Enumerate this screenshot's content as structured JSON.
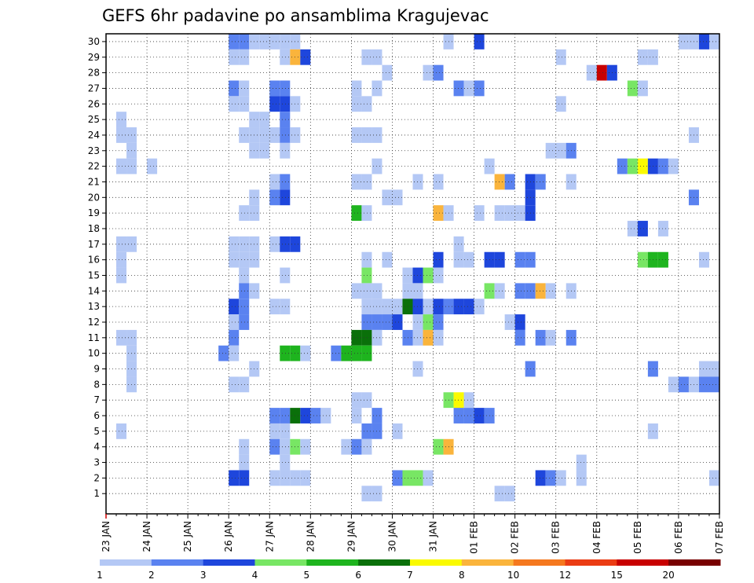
{
  "chart_data": {
    "type": "heatmap",
    "title": "GEFS 6hr padavine po ansamblima Kragujevac",
    "xlabel": "",
    "ylabel": "",
    "x_tick_labels": [
      "23 JAN",
      "24 JAN",
      "25 JAN",
      "26 JAN",
      "27 JAN",
      "28 JAN",
      "29 JAN",
      "30 JAN",
      "31 JAN",
      "01 FEB",
      "02 FEB",
      "03 FEB",
      "04 FEB",
      "05 FEB",
      "06 FEB",
      "07 FEB"
    ],
    "y_tick_labels": [
      "1",
      "2",
      "3",
      "4",
      "5",
      "6",
      "7",
      "8",
      "9",
      "10",
      "11",
      "12",
      "13",
      "14",
      "15",
      "16",
      "17",
      "18",
      "19",
      "20",
      "21",
      "22",
      "23",
      "24",
      "25",
      "26",
      "27",
      "28",
      "29",
      "30"
    ],
    "time_steps_per_day": 4,
    "x_range": [
      "23 JAN",
      "07 FEB"
    ],
    "y_range": [
      1,
      30
    ],
    "grid": true,
    "legend_position": "bottom",
    "legend": {
      "labels": [
        "1",
        "2",
        "3",
        "4",
        "5",
        "6",
        "7",
        "8",
        "10",
        "12",
        "15",
        "20"
      ],
      "colors": [
        "#b4c8f5",
        "#5a82f0",
        "#1e46dc",
        "#78e664",
        "#1eb41e",
        "#0a700a",
        "#fafa00",
        "#fab43c",
        "#f5781e",
        "#eb3c14",
        "#c80000",
        "#780000"
      ]
    },
    "series_encoding": "cells: [member, step, class]; step = index of 6-hour interval from 23 JAN 00 UTC; class = 0-based color bin index",
    "cells": [
      [
        30,
        12,
        1
      ],
      [
        30,
        13,
        1
      ],
      [
        30,
        14,
        0
      ],
      [
        30,
        15,
        0
      ],
      [
        30,
        16,
        0
      ],
      [
        30,
        17,
        0
      ],
      [
        30,
        18,
        0
      ],
      [
        30,
        33,
        0
      ],
      [
        30,
        36,
        2
      ],
      [
        30,
        56,
        0
      ],
      [
        30,
        57,
        0
      ],
      [
        30,
        58,
        2
      ],
      [
        30,
        59,
        0
      ],
      [
        29,
        12,
        0
      ],
      [
        29,
        13,
        0
      ],
      [
        29,
        17,
        0
      ],
      [
        29,
        18,
        7
      ],
      [
        29,
        19,
        2
      ],
      [
        29,
        25,
        0
      ],
      [
        29,
        26,
        0
      ],
      [
        29,
        44,
        0
      ],
      [
        29,
        52,
        0
      ],
      [
        29,
        53,
        0
      ],
      [
        28,
        27,
        0
      ],
      [
        28,
        31,
        0
      ],
      [
        28,
        32,
        1
      ],
      [
        28,
        47,
        0
      ],
      [
        28,
        48,
        10
      ],
      [
        28,
        49,
        2
      ],
      [
        27,
        12,
        1
      ],
      [
        27,
        13,
        0
      ],
      [
        27,
        16,
        1
      ],
      [
        27,
        17,
        1
      ],
      [
        27,
        24,
        0
      ],
      [
        27,
        26,
        0
      ],
      [
        27,
        34,
        1
      ],
      [
        27,
        35,
        0
      ],
      [
        27,
        36,
        1
      ],
      [
        27,
        51,
        3
      ],
      [
        27,
        52,
        0
      ],
      [
        26,
        12,
        0
      ],
      [
        26,
        13,
        0
      ],
      [
        26,
        16,
        2
      ],
      [
        26,
        17,
        2
      ],
      [
        26,
        18,
        0
      ],
      [
        26,
        24,
        0
      ],
      [
        26,
        25,
        0
      ],
      [
        26,
        44,
        0
      ],
      [
        25,
        1,
        0
      ],
      [
        25,
        14,
        0
      ],
      [
        25,
        15,
        0
      ],
      [
        25,
        17,
        1
      ],
      [
        24,
        1,
        0
      ],
      [
        24,
        2,
        0
      ],
      [
        24,
        13,
        0
      ],
      [
        24,
        14,
        0
      ],
      [
        24,
        15,
        0
      ],
      [
        24,
        16,
        0
      ],
      [
        24,
        17,
        1
      ],
      [
        24,
        18,
        0
      ],
      [
        24,
        24,
        0
      ],
      [
        24,
        25,
        0
      ],
      [
        24,
        26,
        0
      ],
      [
        24,
        57,
        0
      ],
      [
        23,
        2,
        0
      ],
      [
        23,
        14,
        0
      ],
      [
        23,
        15,
        0
      ],
      [
        23,
        17,
        0
      ],
      [
        23,
        43,
        0
      ],
      [
        23,
        44,
        0
      ],
      [
        23,
        45,
        1
      ],
      [
        22,
        1,
        0
      ],
      [
        22,
        2,
        0
      ],
      [
        22,
        4,
        0
      ],
      [
        22,
        26,
        0
      ],
      [
        22,
        37,
        0
      ],
      [
        22,
        50,
        1
      ],
      [
        22,
        51,
        3
      ],
      [
        22,
        52,
        6
      ],
      [
        22,
        53,
        2
      ],
      [
        22,
        54,
        1
      ],
      [
        22,
        55,
        0
      ],
      [
        21,
        16,
        0
      ],
      [
        21,
        17,
        1
      ],
      [
        21,
        24,
        0
      ],
      [
        21,
        25,
        0
      ],
      [
        21,
        30,
        0
      ],
      [
        21,
        32,
        0
      ],
      [
        21,
        38,
        7
      ],
      [
        21,
        39,
        1
      ],
      [
        21,
        41,
        2
      ],
      [
        21,
        42,
        1
      ],
      [
        21,
        45,
        0
      ],
      [
        20,
        14,
        0
      ],
      [
        20,
        16,
        1
      ],
      [
        20,
        17,
        2
      ],
      [
        20,
        27,
        0
      ],
      [
        20,
        28,
        0
      ],
      [
        20,
        41,
        2
      ],
      [
        20,
        57,
        1
      ],
      [
        19,
        13,
        0
      ],
      [
        19,
        14,
        0
      ],
      [
        19,
        24,
        4
      ],
      [
        19,
        25,
        0
      ],
      [
        19,
        32,
        7
      ],
      [
        19,
        33,
        0
      ],
      [
        19,
        36,
        0
      ],
      [
        19,
        38,
        0
      ],
      [
        19,
        39,
        0
      ],
      [
        19,
        40,
        0
      ],
      [
        19,
        41,
        2
      ],
      [
        18,
        51,
        0
      ],
      [
        18,
        52,
        2
      ],
      [
        18,
        54,
        0
      ],
      [
        17,
        1,
        0
      ],
      [
        17,
        2,
        0
      ],
      [
        17,
        12,
        0
      ],
      [
        17,
        13,
        0
      ],
      [
        17,
        14,
        0
      ],
      [
        17,
        16,
        0
      ],
      [
        17,
        17,
        2
      ],
      [
        17,
        18,
        2
      ],
      [
        17,
        34,
        0
      ],
      [
        16,
        1,
        0
      ],
      [
        16,
        12,
        0
      ],
      [
        16,
        13,
        0
      ],
      [
        16,
        14,
        0
      ],
      [
        16,
        25,
        0
      ],
      [
        16,
        27,
        0
      ],
      [
        16,
        32,
        2
      ],
      [
        16,
        34,
        0
      ],
      [
        16,
        35,
        0
      ],
      [
        16,
        37,
        2
      ],
      [
        16,
        38,
        2
      ],
      [
        16,
        40,
        1
      ],
      [
        16,
        41,
        1
      ],
      [
        16,
        52,
        3
      ],
      [
        16,
        53,
        4
      ],
      [
        16,
        54,
        4
      ],
      [
        16,
        58,
        0
      ],
      [
        15,
        1,
        0
      ],
      [
        15,
        13,
        0
      ],
      [
        15,
        17,
        0
      ],
      [
        15,
        25,
        3
      ],
      [
        15,
        29,
        0
      ],
      [
        15,
        30,
        2
      ],
      [
        15,
        31,
        3
      ],
      [
        15,
        32,
        0
      ],
      [
        14,
        13,
        1
      ],
      [
        14,
        14,
        0
      ],
      [
        14,
        24,
        0
      ],
      [
        14,
        25,
        0
      ],
      [
        14,
        26,
        0
      ],
      [
        14,
        29,
        0
      ],
      [
        14,
        30,
        0
      ],
      [
        14,
        37,
        3
      ],
      [
        14,
        38,
        0
      ],
      [
        14,
        40,
        1
      ],
      [
        14,
        41,
        1
      ],
      [
        14,
        42,
        7
      ],
      [
        14,
        43,
        0
      ],
      [
        14,
        45,
        0
      ],
      [
        13,
        12,
        2
      ],
      [
        13,
        13,
        1
      ],
      [
        13,
        16,
        0
      ],
      [
        13,
        17,
        0
      ],
      [
        13,
        25,
        0
      ],
      [
        13,
        26,
        0
      ],
      [
        13,
        27,
        0
      ],
      [
        13,
        28,
        0
      ],
      [
        13,
        29,
        5
      ],
      [
        13,
        30,
        2
      ],
      [
        13,
        31,
        0
      ],
      [
        13,
        32,
        2
      ],
      [
        13,
        33,
        1
      ],
      [
        13,
        34,
        2
      ],
      [
        13,
        35,
        2
      ],
      [
        13,
        36,
        0
      ],
      [
        12,
        12,
        0
      ],
      [
        12,
        13,
        1
      ],
      [
        12,
        25,
        1
      ],
      [
        12,
        26,
        1
      ],
      [
        12,
        27,
        1
      ],
      [
        12,
        28,
        2
      ],
      [
        12,
        30,
        0
      ],
      [
        12,
        31,
        3
      ],
      [
        12,
        32,
        1
      ],
      [
        12,
        39,
        0
      ],
      [
        12,
        40,
        2
      ],
      [
        11,
        1,
        0
      ],
      [
        11,
        2,
        0
      ],
      [
        11,
        12,
        1
      ],
      [
        11,
        24,
        5
      ],
      [
        11,
        25,
        5
      ],
      [
        11,
        26,
        0
      ],
      [
        11,
        29,
        1
      ],
      [
        11,
        30,
        0
      ],
      [
        11,
        31,
        7
      ],
      [
        11,
        32,
        0
      ],
      [
        11,
        40,
        1
      ],
      [
        11,
        42,
        1
      ],
      [
        11,
        43,
        0
      ],
      [
        11,
        45,
        1
      ],
      [
        10,
        2,
        0
      ],
      [
        10,
        11,
        1
      ],
      [
        10,
        12,
        0
      ],
      [
        10,
        17,
        4
      ],
      [
        10,
        18,
        4
      ],
      [
        10,
        19,
        0
      ],
      [
        10,
        22,
        1
      ],
      [
        10,
        23,
        4
      ],
      [
        10,
        24,
        4
      ],
      [
        10,
        25,
        4
      ],
      [
        9,
        2,
        0
      ],
      [
        9,
        14,
        0
      ],
      [
        9,
        30,
        0
      ],
      [
        9,
        41,
        1
      ],
      [
        9,
        53,
        1
      ],
      [
        9,
        58,
        0
      ],
      [
        9,
        59,
        0
      ],
      [
        8,
        2,
        0
      ],
      [
        8,
        12,
        0
      ],
      [
        8,
        13,
        0
      ],
      [
        8,
        55,
        0
      ],
      [
        8,
        56,
        1
      ],
      [
        8,
        57,
        0
      ],
      [
        8,
        58,
        1
      ],
      [
        8,
        59,
        1
      ],
      [
        7,
        24,
        0
      ],
      [
        7,
        25,
        0
      ],
      [
        7,
        33,
        3
      ],
      [
        7,
        34,
        6
      ],
      [
        7,
        35,
        0
      ],
      [
        6,
        16,
        1
      ],
      [
        6,
        17,
        1
      ],
      [
        6,
        18,
        5
      ],
      [
        6,
        19,
        2
      ],
      [
        6,
        20,
        1
      ],
      [
        6,
        21,
        0
      ],
      [
        6,
        24,
        0
      ],
      [
        6,
        26,
        1
      ],
      [
        6,
        34,
        1
      ],
      [
        6,
        35,
        1
      ],
      [
        6,
        36,
        2
      ],
      [
        6,
        37,
        1
      ],
      [
        5,
        1,
        0
      ],
      [
        5,
        16,
        0
      ],
      [
        5,
        17,
        0
      ],
      [
        5,
        25,
        1
      ],
      [
        5,
        26,
        1
      ],
      [
        5,
        28,
        0
      ],
      [
        5,
        53,
        0
      ],
      [
        4,
        13,
        0
      ],
      [
        4,
        16,
        1
      ],
      [
        4,
        17,
        0
      ],
      [
        4,
        18,
        3
      ],
      [
        4,
        19,
        0
      ],
      [
        4,
        23,
        0
      ],
      [
        4,
        24,
        1
      ],
      [
        4,
        25,
        0
      ],
      [
        4,
        32,
        3
      ],
      [
        4,
        33,
        7
      ],
      [
        3,
        13,
        0
      ],
      [
        3,
        17,
        0
      ],
      [
        3,
        46,
        0
      ],
      [
        2,
        12,
        2
      ],
      [
        2,
        13,
        2
      ],
      [
        2,
        16,
        0
      ],
      [
        2,
        17,
        0
      ],
      [
        2,
        18,
        0
      ],
      [
        2,
        19,
        0
      ],
      [
        2,
        28,
        1
      ],
      [
        2,
        29,
        3
      ],
      [
        2,
        30,
        3
      ],
      [
        2,
        31,
        0
      ],
      [
        2,
        42,
        2
      ],
      [
        2,
        43,
        1
      ],
      [
        2,
        44,
        0
      ],
      [
        2,
        46,
        0
      ],
      [
        2,
        59,
        0
      ],
      [
        1,
        25,
        0
      ],
      [
        1,
        26,
        0
      ],
      [
        1,
        38,
        0
      ],
      [
        1,
        39,
        0
      ]
    ]
  }
}
